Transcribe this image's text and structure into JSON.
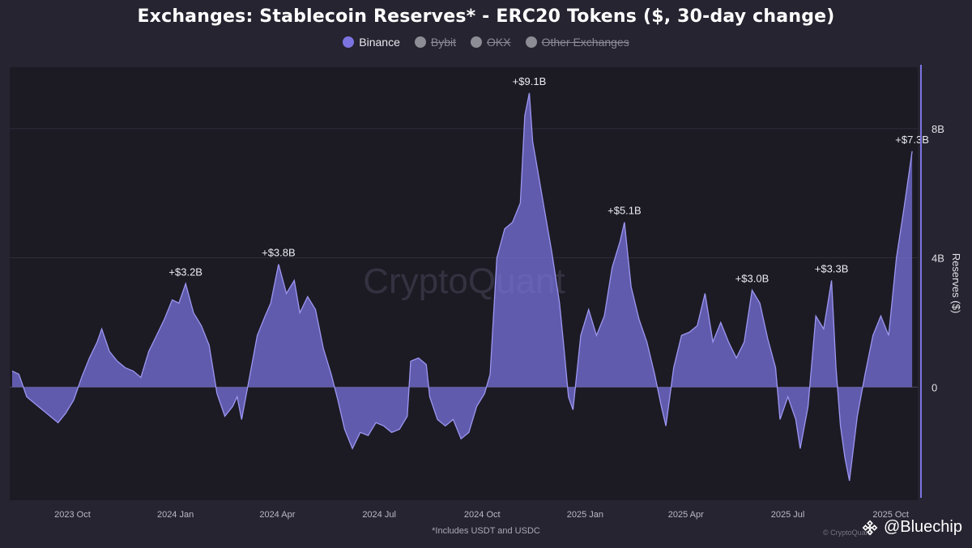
{
  "chart_data": {
    "type": "area",
    "title": "Exchanges: Stablecoin Reserves* - ERC20 Tokens ($, 30-day change)",
    "ylabel": "Reserves ($)",
    "ylim": [
      -3.5,
      9.9
    ],
    "yticks": [
      {
        "value": 0,
        "label": "0"
      },
      {
        "value": 4,
        "label": "4B"
      },
      {
        "value": 8,
        "label": "8B"
      }
    ],
    "xlim": [
      "2023-09-01",
      "2025-11-18"
    ],
    "xticks": [
      {
        "date": "2023-10-01",
        "label": "2023 Oct"
      },
      {
        "date": "2024-01-01",
        "label": "2024 Jan"
      },
      {
        "date": "2024-04-01",
        "label": "2024 Apr"
      },
      {
        "date": "2024-07-01",
        "label": "2024 Jul"
      },
      {
        "date": "2024-10-01",
        "label": "2024 Oct"
      },
      {
        "date": "2025-01-01",
        "label": "2025 Jan"
      },
      {
        "date": "2025-04-01",
        "label": "2025 Apr"
      },
      {
        "date": "2025-07-01",
        "label": "2025 Jul"
      },
      {
        "date": "2025-10-01",
        "label": "2025 Oct"
      }
    ],
    "legend": [
      {
        "name": "Binance",
        "visible": true,
        "color": "#7b74e0"
      },
      {
        "name": "Bybit",
        "visible": false,
        "color": "#8d8d95"
      },
      {
        "name": "OKX",
        "visible": false,
        "color": "#8d8d95"
      },
      {
        "name": "Other Exchanges",
        "visible": false,
        "color": "#8d8d95"
      }
    ],
    "legend_position": "top-center",
    "series": [
      {
        "name": "Binance",
        "color": "#7b74e0",
        "points": [
          [
            "2023-09-01",
            0.5
          ],
          [
            "2023-09-07",
            0.4
          ],
          [
            "2023-09-14",
            -0.3
          ],
          [
            "2023-09-21",
            -0.5
          ],
          [
            "2023-09-28",
            -0.7
          ],
          [
            "2023-10-05",
            -0.9
          ],
          [
            "2023-10-12",
            -1.1
          ],
          [
            "2023-10-19",
            -0.8
          ],
          [
            "2023-10-26",
            -0.4
          ],
          [
            "2023-11-02",
            0.3
          ],
          [
            "2023-11-09",
            0.9
          ],
          [
            "2023-11-16",
            1.4
          ],
          [
            "2023-11-20",
            1.8
          ],
          [
            "2023-11-27",
            1.1
          ],
          [
            "2023-12-04",
            0.8
          ],
          [
            "2023-12-11",
            0.6
          ],
          [
            "2023-12-18",
            0.5
          ],
          [
            "2023-12-25",
            0.3
          ],
          [
            "2024-01-01",
            1.1
          ],
          [
            "2024-01-08",
            1.6
          ],
          [
            "2024-01-15",
            2.1
          ],
          [
            "2024-01-22",
            2.7
          ],
          [
            "2024-01-28",
            2.6
          ],
          [
            "2024-02-03",
            3.2
          ],
          [
            "2024-02-10",
            2.3
          ],
          [
            "2024-02-17",
            1.9
          ],
          [
            "2024-02-24",
            1.3
          ],
          [
            "2024-03-02",
            -0.2
          ],
          [
            "2024-03-09",
            -0.9
          ],
          [
            "2024-03-16",
            -0.6
          ],
          [
            "2024-03-20",
            -0.3
          ],
          [
            "2024-03-24",
            -1.0
          ],
          [
            "2024-03-31",
            0.3
          ],
          [
            "2024-04-07",
            1.6
          ],
          [
            "2024-04-14",
            2.2
          ],
          [
            "2024-04-19",
            2.6
          ],
          [
            "2024-04-26",
            3.8
          ],
          [
            "2024-05-03",
            2.9
          ],
          [
            "2024-05-10",
            3.3
          ],
          [
            "2024-05-15",
            2.3
          ],
          [
            "2024-05-22",
            2.8
          ],
          [
            "2024-05-29",
            2.4
          ],
          [
            "2024-06-05",
            1.2
          ],
          [
            "2024-06-12",
            0.4
          ],
          [
            "2024-06-18",
            -0.4
          ],
          [
            "2024-06-24",
            -1.3
          ],
          [
            "2024-07-01",
            -1.9
          ],
          [
            "2024-07-08",
            -1.4
          ],
          [
            "2024-07-15",
            -1.5
          ],
          [
            "2024-07-22",
            -1.1
          ],
          [
            "2024-07-29",
            -1.2
          ],
          [
            "2024-08-05",
            -1.4
          ],
          [
            "2024-08-12",
            -1.3
          ],
          [
            "2024-08-19",
            -0.9
          ],
          [
            "2024-08-22",
            0.8
          ],
          [
            "2024-08-29",
            0.9
          ],
          [
            "2024-09-05",
            0.7
          ],
          [
            "2024-09-08",
            -0.3
          ],
          [
            "2024-09-15",
            -1.0
          ],
          [
            "2024-09-22",
            -1.2
          ],
          [
            "2024-09-29",
            -1.0
          ],
          [
            "2024-10-06",
            -1.6
          ],
          [
            "2024-10-13",
            -1.4
          ],
          [
            "2024-10-20",
            -0.6
          ],
          [
            "2024-10-27",
            -0.2
          ],
          [
            "2024-11-01",
            0.4
          ],
          [
            "2024-11-07",
            4.0
          ],
          [
            "2024-11-14",
            4.9
          ],
          [
            "2024-11-21",
            5.1
          ],
          [
            "2024-11-28",
            5.7
          ],
          [
            "2024-12-02",
            8.4
          ],
          [
            "2024-12-06",
            9.1
          ],
          [
            "2024-12-09",
            7.6
          ],
          [
            "2024-12-12",
            7.0
          ],
          [
            "2024-12-19",
            5.6
          ],
          [
            "2024-12-26",
            4.2
          ],
          [
            "2025-01-02",
            2.6
          ],
          [
            "2025-01-06",
            1.2
          ],
          [
            "2025-01-10",
            -0.3
          ],
          [
            "2025-01-14",
            -0.7
          ],
          [
            "2025-01-21",
            1.6
          ],
          [
            "2025-01-28",
            2.4
          ],
          [
            "2025-02-04",
            1.6
          ],
          [
            "2025-02-11",
            2.2
          ],
          [
            "2025-02-18",
            3.7
          ],
          [
            "2025-02-25",
            4.5
          ],
          [
            "2025-03-01",
            5.1
          ],
          [
            "2025-03-07",
            3.1
          ],
          [
            "2025-03-14",
            2.1
          ],
          [
            "2025-03-21",
            1.4
          ],
          [
            "2025-03-28",
            0.4
          ],
          [
            "2025-04-03",
            -0.6
          ],
          [
            "2025-04-07",
            -1.2
          ],
          [
            "2025-04-14",
            0.6
          ],
          [
            "2025-04-21",
            1.6
          ],
          [
            "2025-04-28",
            1.7
          ],
          [
            "2025-05-05",
            1.9
          ],
          [
            "2025-05-12",
            2.9
          ],
          [
            "2025-05-19",
            1.4
          ],
          [
            "2025-05-26",
            2.0
          ],
          [
            "2025-06-02",
            1.4
          ],
          [
            "2025-06-09",
            0.9
          ],
          [
            "2025-06-16",
            1.4
          ],
          [
            "2025-06-23",
            3.0
          ],
          [
            "2025-06-30",
            2.6
          ],
          [
            "2025-07-07",
            1.5
          ],
          [
            "2025-07-14",
            0.6
          ],
          [
            "2025-07-18",
            -1.0
          ],
          [
            "2025-07-25",
            -0.3
          ],
          [
            "2025-08-01",
            -1.0
          ],
          [
            "2025-08-05",
            -1.9
          ],
          [
            "2025-08-12",
            -0.6
          ],
          [
            "2025-08-19",
            2.2
          ],
          [
            "2025-08-26",
            1.8
          ],
          [
            "2025-09-02",
            3.3
          ],
          [
            "2025-09-06",
            0.6
          ],
          [
            "2025-09-10",
            -1.2
          ],
          [
            "2025-09-14",
            -2.2
          ],
          [
            "2025-09-18",
            -2.9
          ],
          [
            "2025-09-25",
            -0.9
          ],
          [
            "2025-10-02",
            0.4
          ],
          [
            "2025-10-09",
            1.6
          ],
          [
            "2025-10-16",
            2.2
          ],
          [
            "2025-10-23",
            1.6
          ],
          [
            "2025-10-30",
            4.0
          ],
          [
            "2025-11-06",
            5.6
          ],
          [
            "2025-11-13",
            7.3
          ]
        ]
      }
    ],
    "annotations": [
      {
        "date": "2024-02-03",
        "value": 3.2,
        "text": "+$3.2B"
      },
      {
        "date": "2024-04-26",
        "value": 3.8,
        "text": "+$3.8B"
      },
      {
        "date": "2024-12-06",
        "value": 9.1,
        "text": "+$9.1B"
      },
      {
        "date": "2025-03-01",
        "value": 5.1,
        "text": "+$5.1B"
      },
      {
        "date": "2025-06-23",
        "value": 3.0,
        "text": "+$3.0B"
      },
      {
        "date": "2025-09-02",
        "value": 3.3,
        "text": "+$3.3B"
      },
      {
        "date": "2025-11-13",
        "value": 7.3,
        "text": "+$7.3B"
      }
    ],
    "watermark": "CryptoQuant",
    "footnote": "*Includes USDT and USDC"
  },
  "credit": {
    "handle": "@Bluechip",
    "small_text": "© CryptoQuant"
  }
}
